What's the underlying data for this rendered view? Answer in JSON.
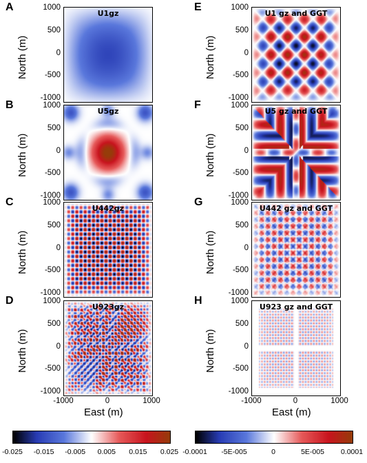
{
  "panels": [
    {
      "letter": "A",
      "title": "U1gz",
      "pattern": "u1"
    },
    {
      "letter": "B",
      "title": "U5gz",
      "pattern": "u5"
    },
    {
      "letter": "C",
      "title": "U442gz",
      "pattern": "u442"
    },
    {
      "letter": "D",
      "title": "U923gz",
      "pattern": "u923"
    },
    {
      "letter": "E",
      "title": "U1 gz and GGT",
      "pattern": "e"
    },
    {
      "letter": "F",
      "title": "U5 gz and GGT",
      "pattern": "f"
    },
    {
      "letter": "G",
      "title": "U442 gz and GGT",
      "pattern": "g"
    },
    {
      "letter": "H",
      "title": "U923 gz and GGT",
      "pattern": "h"
    }
  ],
  "axes": {
    "ylabel": "North (m)",
    "xlabel": "East (m)",
    "yticks": [
      "1000",
      "500",
      "0",
      "-500",
      "-1000"
    ],
    "xticks": [
      "-1000",
      "0",
      "1000"
    ]
  },
  "colorbars": [
    {
      "ticks": [
        "-0.025",
        "-0.015",
        "-0.005",
        "0.005",
        "0.015",
        "0.025"
      ]
    },
    {
      "ticks": [
        "-0.0001",
        "-5E-005",
        "0",
        "5E-005",
        "0.0001"
      ]
    }
  ],
  "colors": {
    "dark": "#000000",
    "blue": "#3050c8",
    "white": "#ffffff",
    "red": "#d0142a",
    "brown": "#a0300a"
  }
}
